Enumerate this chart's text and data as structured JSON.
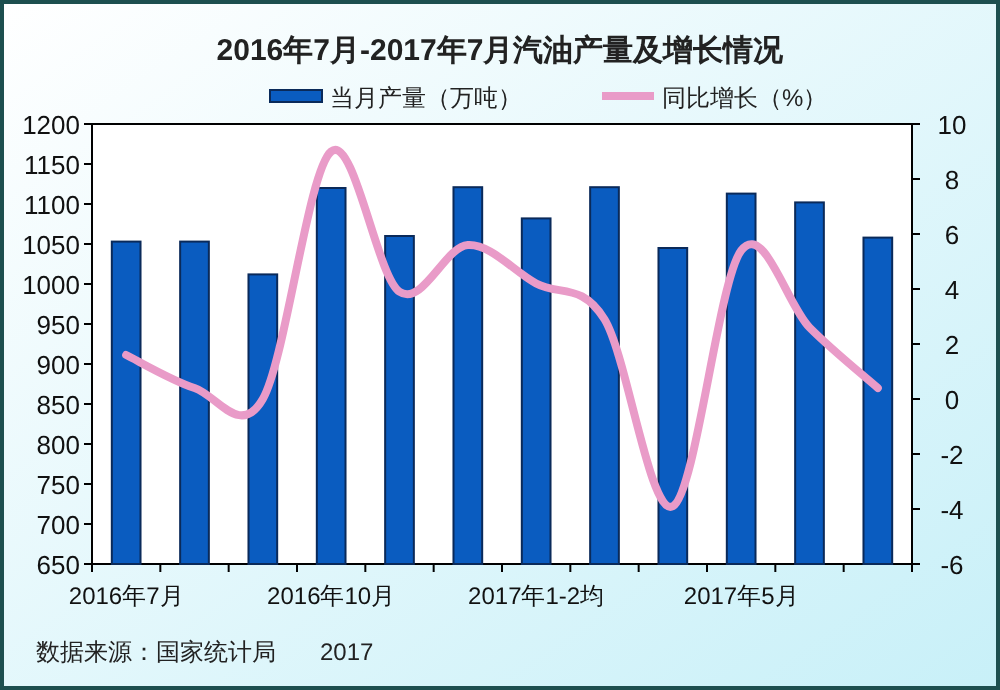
{
  "chart_data": {
    "type": "bar",
    "title": "2016年7月-2017年7月汽油产量及增长情况",
    "categories": [
      "2016年7月",
      null,
      null,
      "2016年10月",
      null,
      null,
      "2017年1-2均",
      null,
      null,
      "2017年5月",
      null,
      null
    ],
    "series": [
      {
        "name": "当月产量（万吨）",
        "color": "#0a5cc0",
        "values": [
          1053,
          1053,
          1012,
          1120,
          1060,
          1121,
          1082,
          1121,
          1045,
          1113,
          1102,
          1058
        ]
      },
      {
        "name": "同比增长（%）",
        "type": "line",
        "axis": "y2",
        "color": "#e99bc8",
        "values": [
          1.6,
          0.4,
          0.0,
          9.0,
          3.9,
          5.6,
          4.2,
          2.9,
          -3.9,
          5.4,
          2.6,
          0.4
        ]
      }
    ],
    "ylim": [
      650,
      1200
    ],
    "yticks": [
      650,
      700,
      750,
      800,
      850,
      900,
      950,
      1000,
      1050,
      1100,
      1150,
      1200
    ],
    "y2lim": [
      -6,
      10
    ],
    "y2ticks": [
      -6,
      -4,
      -2,
      0,
      2,
      4,
      6,
      8,
      10
    ],
    "grid": false,
    "legend": "top",
    "annotations": [
      "数据来源：国家统计局",
      "2017"
    ]
  }
}
